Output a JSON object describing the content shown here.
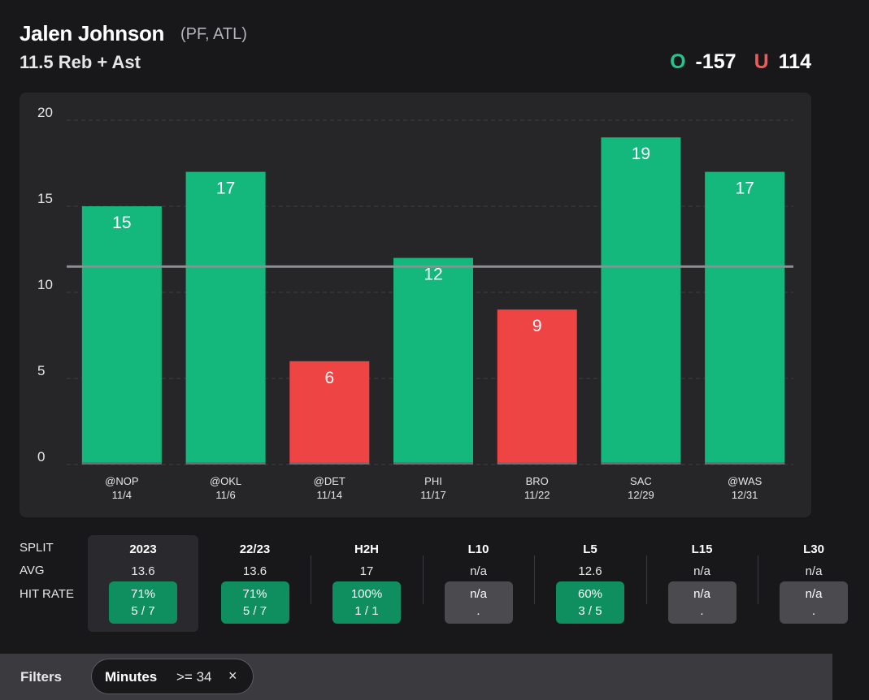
{
  "header": {
    "player_name": "Jalen Johnson",
    "player_meta": "(PF, ATL)",
    "prop_line": "11.5 Reb + Ast",
    "over_label": "O",
    "over_odds": "-157",
    "under_label": "U",
    "under_odds": "114"
  },
  "colors": {
    "over": "#14b87d",
    "under": "#ef4444",
    "line": "#8e8e93"
  },
  "chart_data": {
    "type": "bar",
    "title": "",
    "xlabel": "",
    "ylabel": "",
    "ylim": [
      0,
      20
    ],
    "yticks": [
      0,
      5,
      10,
      15,
      20
    ],
    "prop_line": 11.5,
    "categories": [
      {
        "opponent": "@NOP",
        "date": "11/4"
      },
      {
        "opponent": "@OKL",
        "date": "11/6"
      },
      {
        "opponent": "@DET",
        "date": "11/14"
      },
      {
        "opponent": "PHI",
        "date": "11/17"
      },
      {
        "opponent": "BRO",
        "date": "11/22"
      },
      {
        "opponent": "SAC",
        "date": "12/29"
      },
      {
        "opponent": "@WAS",
        "date": "12/31"
      }
    ],
    "values": [
      15,
      17,
      6,
      12,
      9,
      19,
      17
    ]
  },
  "splits": {
    "row_labels": {
      "split": "SPLIT",
      "avg": "AVG",
      "hit_rate": "HIT RATE"
    },
    "columns": [
      {
        "label": "2023",
        "avg": "13.6",
        "pct": "71%",
        "frac": "5 / 7",
        "status": "green"
      },
      {
        "label": "22/23",
        "avg": "13.6",
        "pct": "71%",
        "frac": "5 / 7",
        "status": "green"
      },
      {
        "label": "H2H",
        "avg": "17",
        "pct": "100%",
        "frac": "1 / 1",
        "status": "green"
      },
      {
        "label": "L10",
        "avg": "n/a",
        "pct": "n/a",
        "frac": ".",
        "status": "gray"
      },
      {
        "label": "L5",
        "avg": "12.6",
        "pct": "60%",
        "frac": "3 / 5",
        "status": "green"
      },
      {
        "label": "L15",
        "avg": "n/a",
        "pct": "n/a",
        "frac": ".",
        "status": "gray"
      },
      {
        "label": "L30",
        "avg": "n/a",
        "pct": "n/a",
        "frac": ".",
        "status": "gray"
      }
    ]
  },
  "filters": {
    "title": "Filters",
    "chip_name": "Minutes",
    "chip_value": ">= 34",
    "chip_remove": "×"
  }
}
